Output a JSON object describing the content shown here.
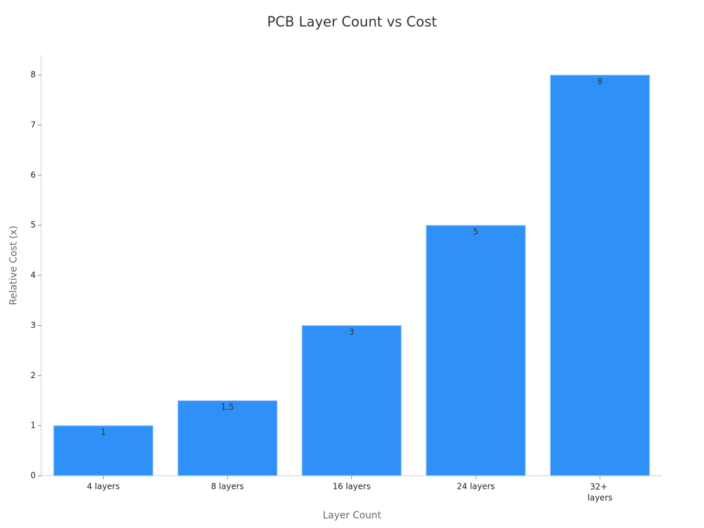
{
  "chart_data": {
    "type": "bar",
    "title": "PCB Layer Count vs Cost",
    "x_label": "Layer Count",
    "y_label": "Relative Cost (x)",
    "categories": [
      "4 layers",
      "8 layers",
      "16 layers",
      "24 layers",
      "32+ layers"
    ],
    "values": [
      1,
      1.5,
      3,
      5,
      8
    ],
    "color": "#2f91f7",
    "ylim": [
      0,
      8.4
    ],
    "yticks": [
      0,
      1,
      2,
      3,
      4,
      5,
      6,
      7,
      8
    ],
    "grid": false
  }
}
